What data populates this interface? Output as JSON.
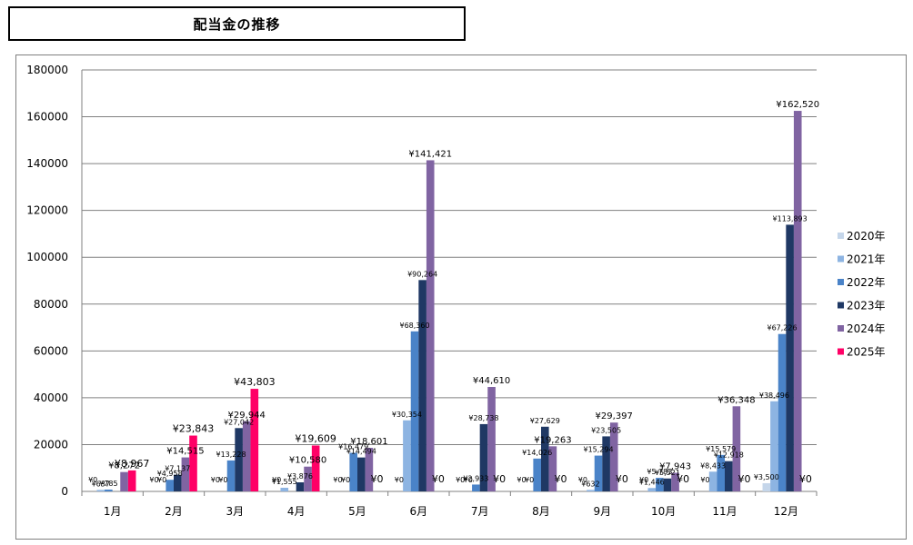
{
  "title": "配当金の推移",
  "chart_data": {
    "type": "bar",
    "categories": [
      "1月",
      "2月",
      "3月",
      "4月",
      "5月",
      "6月",
      "7月",
      "8月",
      "9月",
      "10月",
      "11月",
      "12月"
    ],
    "ylim": [
      0,
      180000
    ],
    "y_ticks": [
      "0",
      "20000",
      "40000",
      "60000",
      "80000",
      "100000",
      "120000",
      "140000",
      "160000",
      "180000"
    ],
    "grid": true,
    "legend_position": "right",
    "series": [
      {
        "name": "2020年",
        "color": "#c5d6ea",
        "values": [
          0,
          0,
          0,
          0,
          0,
          0,
          0,
          0,
          0,
          0,
          0,
          3500
        ],
        "labels": [
          "¥0",
          "¥0",
          "¥0",
          "¥0",
          "¥0",
          "¥0",
          "¥0",
          "¥0",
          "¥0",
          "¥0",
          "¥0",
          "¥3,500"
        ]
      },
      {
        "name": "2021年",
        "color": "#8db4e2",
        "values": [
          637,
          0,
          0,
          1555,
          0,
          30354,
          0,
          0,
          632,
          1446,
          8433,
          38496
        ],
        "labels": [
          "¥637",
          "¥0",
          "¥0",
          "¥1,555",
          "¥0",
          "¥30,354",
          "¥0",
          "¥0",
          "¥632",
          "¥1,446",
          "¥8,433",
          "¥38,496"
        ]
      },
      {
        "name": "2022年",
        "color": "#4a83c8",
        "values": [
          785,
          4958,
          13228,
          0,
          16479,
          68360,
          2933,
          14026,
          15294,
          5783,
          15579,
          67226
        ],
        "labels": [
          "¥785",
          "¥4,958",
          "¥13,228",
          "",
          "¥16,479",
          "¥68,360",
          "¥2,933",
          "¥14,026",
          "¥15,294",
          "¥5,783",
          "¥15,579",
          "¥67,226"
        ]
      },
      {
        "name": "2023年",
        "color": "#1f3864",
        "values": [
          0,
          7137,
          27042,
          3876,
          14494,
          90264,
          28738,
          27629,
          23505,
          5521,
          12918,
          113893
        ],
        "labels": [
          "",
          "¥7,137",
          "¥27,042",
          "¥3,876",
          "¥14,494",
          "¥90,264",
          "¥28,738",
          "¥27,629",
          "¥23,505",
          "¥5,521",
          "¥12,918",
          "¥113,893"
        ]
      },
      {
        "name": "2024年",
        "color": "#8064a2",
        "values": [
          8272,
          14515,
          29944,
          10580,
          18601,
          141421,
          44610,
          19263,
          29397,
          7943,
          36348,
          162520
        ],
        "labels": [
          "¥8,272",
          "¥14,515",
          "¥29,944",
          "¥10,580",
          "¥18,601",
          "¥141,421",
          "¥44,610",
          "¥19,263",
          "¥29,397",
          "¥7,943",
          "¥36,348",
          "¥162,520"
        ]
      },
      {
        "name": "2025年",
        "color": "#ff0066",
        "values": [
          8967,
          23843,
          43803,
          19609,
          0,
          0,
          0,
          0,
          0,
          0,
          0,
          0
        ],
        "labels": [
          "¥8,967",
          "¥23,843",
          "¥43,803",
          "¥19,609",
          "¥0",
          "¥0",
          "¥0",
          "¥0",
          "¥0",
          "¥0",
          "¥0",
          "¥0"
        ]
      }
    ]
  }
}
